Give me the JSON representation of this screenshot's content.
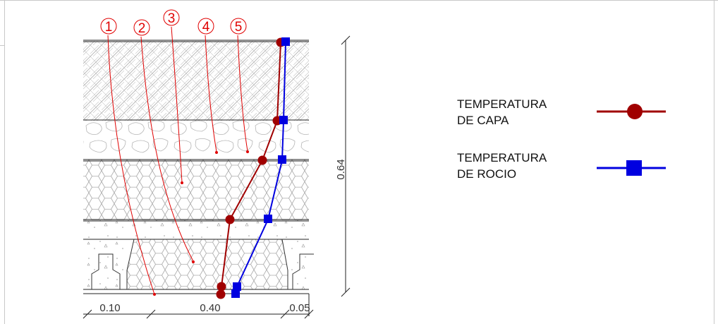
{
  "callouts": [
    "1",
    "2",
    "3",
    "4",
    "5"
  ],
  "dimensions": {
    "height": "0.64",
    "bottom_segments": [
      "0.10",
      "0.40",
      "0.05"
    ]
  },
  "legend": [
    {
      "label": "TEMPERATURA\nDE CAPA",
      "marker": "circle",
      "color": "#a00000"
    },
    {
      "label": "TEMPERATURA\nDE ROCIO",
      "marker": "square",
      "color": "#0000e0"
    }
  ],
  "series": {
    "capa_color": "#a00000",
    "rocio_color": "#0000e0",
    "callout_color": "#e00000"
  }
}
